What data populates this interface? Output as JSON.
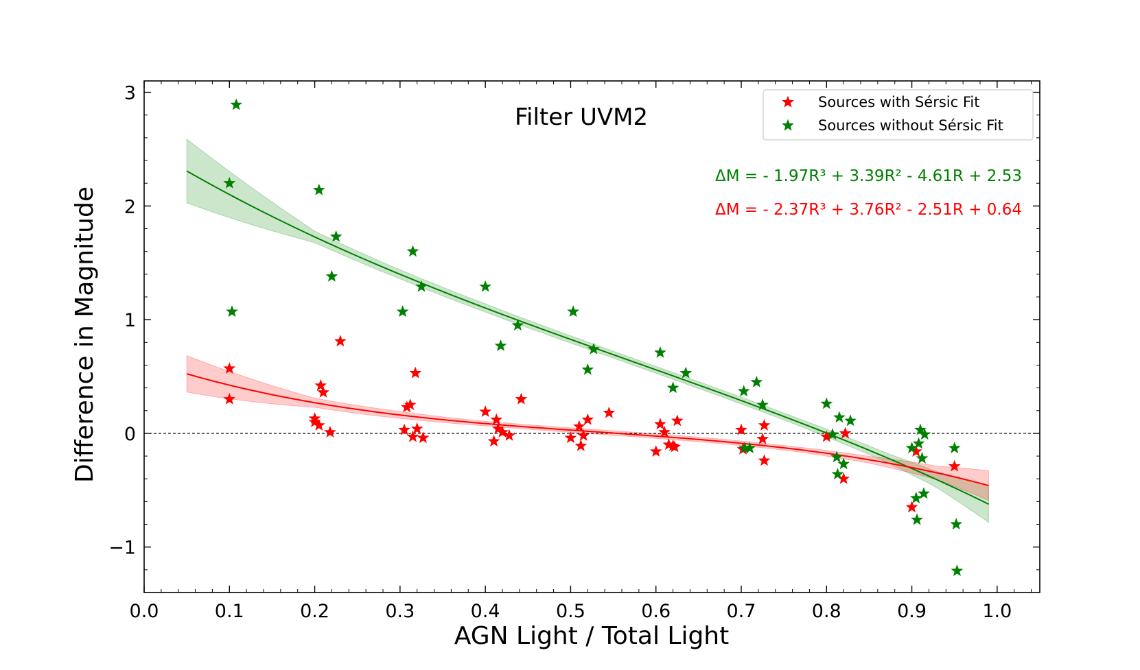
{
  "chart_data": {
    "type": "scatter",
    "title": "Filter UVM2",
    "xlabel": "AGN Light / Total Light",
    "ylabel": "Difference in Magnitude",
    "xlim": [
      0.0,
      1.05
    ],
    "ylim": [
      -1.4,
      3.1
    ],
    "xticks": [
      0.0,
      0.1,
      0.2,
      0.3,
      0.4,
      0.5,
      0.6,
      0.7,
      0.8,
      0.9,
      1.0
    ],
    "xtick_labels": [
      "0.0",
      "0.1",
      "0.2",
      "0.3",
      "0.4",
      "0.5",
      "0.6",
      "0.7",
      "0.8",
      "0.9",
      "1.0"
    ],
    "yticks": [
      -1,
      0,
      1,
      2,
      3
    ],
    "ytick_labels": [
      "−1",
      "0",
      "1",
      "2",
      "3"
    ],
    "grid": false,
    "legend_position": "top-right",
    "reference_line_y": 0,
    "series": [
      {
        "name": "Sources with Sérsic Fit",
        "color": "#ff0000",
        "marker": "star",
        "x": [
          0.1,
          0.1,
          0.2,
          0.2,
          0.205,
          0.207,
          0.21,
          0.218,
          0.23,
          0.305,
          0.308,
          0.312,
          0.315,
          0.318,
          0.32,
          0.327,
          0.4,
          0.41,
          0.413,
          0.415,
          0.42,
          0.428,
          0.442,
          0.5,
          0.51,
          0.512,
          0.515,
          0.52,
          0.545,
          0.6,
          0.605,
          0.61,
          0.615,
          0.62,
          0.622,
          0.625,
          0.7,
          0.702,
          0.725,
          0.727,
          0.727,
          0.8,
          0.82,
          0.822,
          0.9,
          0.905,
          0.95
        ],
        "y": [
          0.57,
          0.3,
          0.1,
          0.13,
          0.07,
          0.42,
          0.36,
          0.01,
          0.81,
          0.03,
          0.23,
          0.25,
          -0.03,
          0.53,
          0.04,
          -0.04,
          0.19,
          -0.07,
          0.12,
          0.04,
          0.01,
          -0.02,
          0.3,
          -0.04,
          0.06,
          -0.11,
          -0.02,
          0.12,
          0.18,
          -0.16,
          0.08,
          0.01,
          -0.1,
          -0.11,
          -0.12,
          0.11,
          0.03,
          -0.14,
          -0.05,
          0.07,
          -0.24,
          -0.03,
          -0.4,
          0.0,
          -0.65,
          -0.16,
          -0.29
        ]
      },
      {
        "name": "Sources without Sérsic Fit",
        "color": "#008000",
        "marker": "star",
        "x": [
          0.1,
          0.103,
          0.108,
          0.205,
          0.22,
          0.225,
          0.303,
          0.315,
          0.325,
          0.4,
          0.418,
          0.438,
          0.503,
          0.52,
          0.527,
          0.605,
          0.62,
          0.635,
          0.703,
          0.704,
          0.71,
          0.718,
          0.725,
          0.8,
          0.807,
          0.812,
          0.813,
          0.815,
          0.82,
          0.828,
          0.9,
          0.905,
          0.906,
          0.908,
          0.91,
          0.912,
          0.914,
          0.915,
          0.95,
          0.952,
          0.953
        ],
        "y": [
          2.2,
          1.07,
          2.89,
          2.14,
          1.38,
          1.73,
          1.07,
          1.6,
          1.29,
          1.29,
          0.77,
          0.95,
          1.07,
          0.56,
          0.74,
          0.71,
          0.4,
          0.53,
          0.37,
          -0.13,
          -0.13,
          0.45,
          0.25,
          0.26,
          -0.01,
          -0.21,
          -0.36,
          0.14,
          -0.27,
          0.11,
          -0.13,
          -0.57,
          -0.76,
          -0.09,
          0.03,
          -0.22,
          -0.53,
          -0.01,
          -0.13,
          -0.8,
          -1.21
        ]
      }
    ],
    "fits": [
      {
        "color": "#008000",
        "equation_text": "ΔM = - 1.97R³ + 3.39R² - 4.61R + 2.53",
        "coefficients": [
          -1.97,
          3.39,
          -4.61,
          2.53
        ],
        "x_range": [
          0.05,
          0.99
        ],
        "band_halfwidth_x": [
          0.05,
          0.2,
          0.3,
          0.55,
          0.75,
          0.87,
          0.93,
          0.99
        ],
        "band_halfwidth_dy": [
          0.28,
          0.05,
          0.04,
          0.03,
          0.03,
          0.04,
          0.07,
          0.16
        ]
      },
      {
        "color": "#ff0000",
        "equation_text": "ΔM = - 2.37R³ + 3.76R² - 2.51R + 0.64",
        "coefficients": [
          -2.37,
          3.76,
          -2.51,
          0.64
        ],
        "x_range": [
          0.05,
          0.99
        ],
        "band_halfwidth_x": [
          0.05,
          0.2,
          0.4,
          0.55,
          0.75,
          0.85,
          0.93,
          0.99
        ],
        "band_halfwidth_dy": [
          0.16,
          0.04,
          0.02,
          0.02,
          0.02,
          0.03,
          0.06,
          0.13
        ]
      }
    ]
  }
}
